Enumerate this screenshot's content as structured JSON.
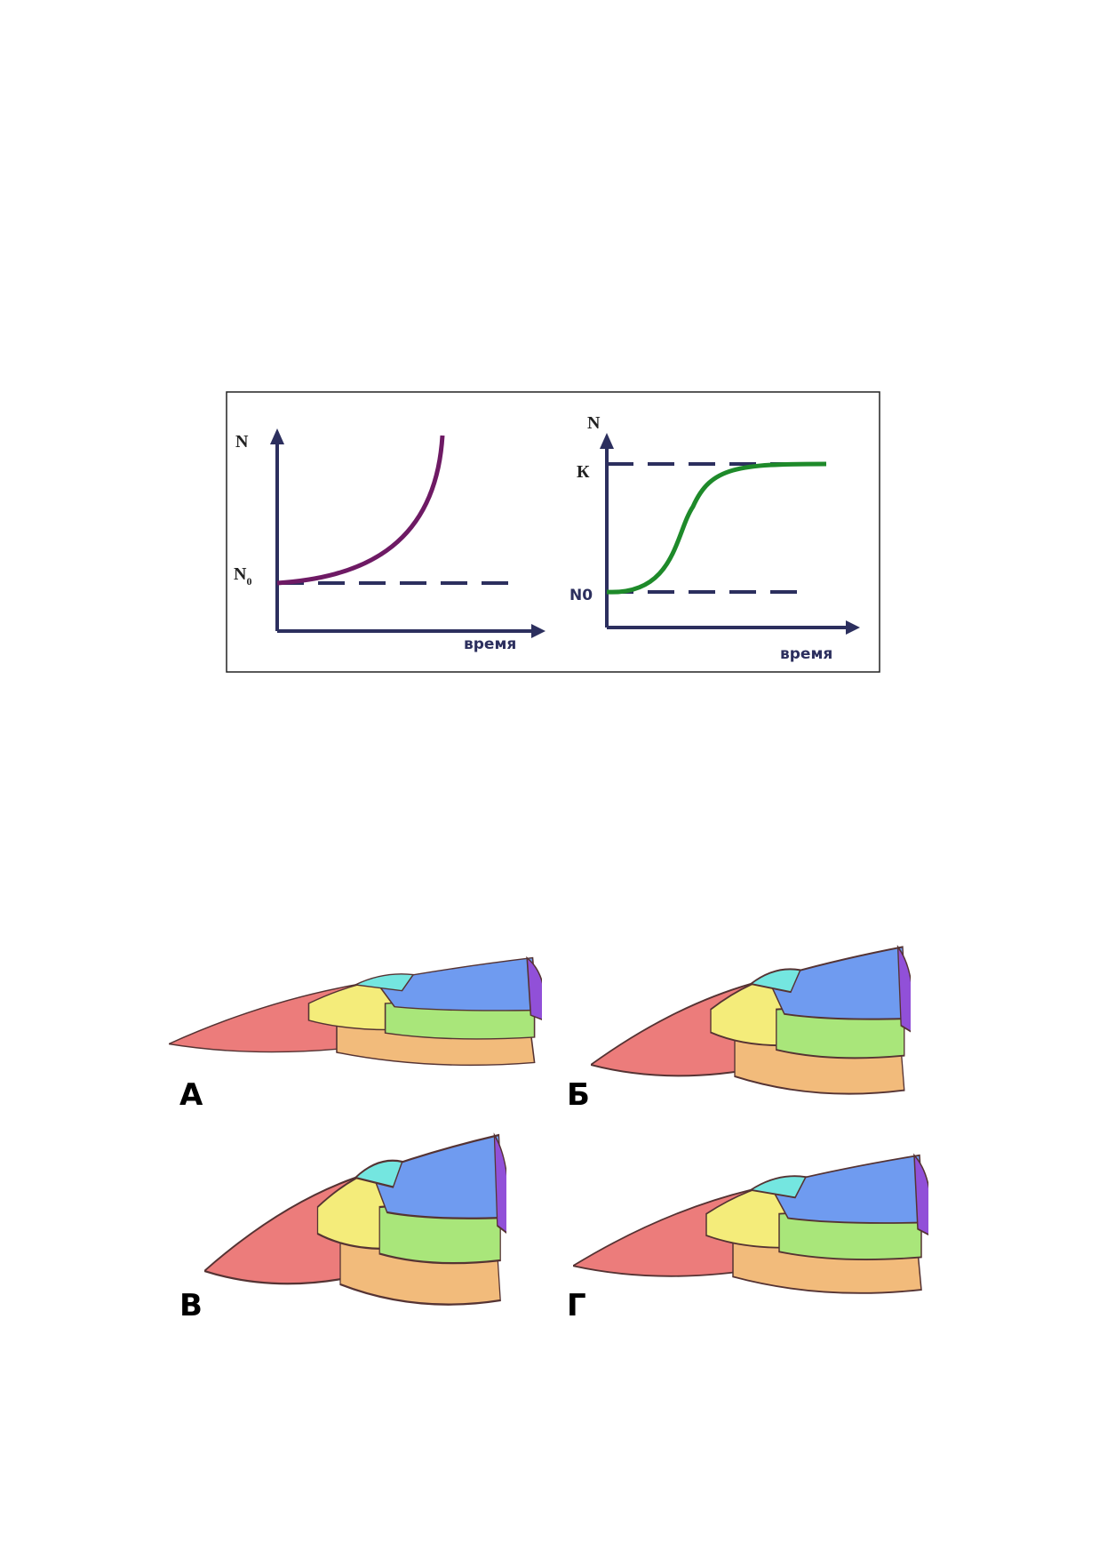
{
  "figure1": {
    "left": {
      "y_label": "N",
      "baseline_label": {
        "main": "N",
        "sub": "0"
      },
      "x_label": "время"
    },
    "right": {
      "y_label": "N",
      "k_label": "К",
      "baseline_label": "N0",
      "x_label": "время"
    }
  },
  "figure2": {
    "labels": [
      "А",
      "Б",
      "В",
      "Г"
    ]
  }
}
